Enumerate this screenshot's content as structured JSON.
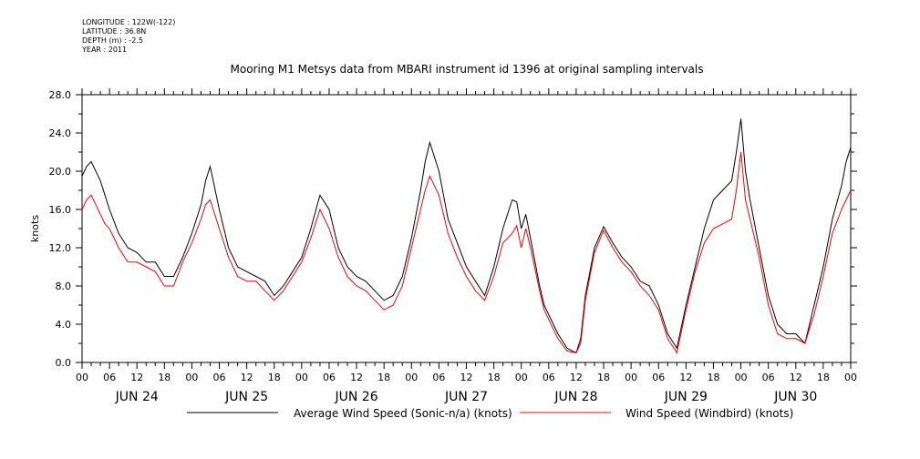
{
  "meta": {
    "longitude": "LONGITUDE : 122W(-122)",
    "latitude": "LATITUDE : 36.8N",
    "depth": "DEPTH (m) : -2.5",
    "year": "YEAR : 2011"
  },
  "chart_data": {
    "type": "line",
    "title": "Mooring M1 Metsys data from MBARI instrument id 1396 at original sampling intervals",
    "ylabel": "knots",
    "xlabel": "",
    "ylim": [
      0,
      28
    ],
    "yticks": [
      0,
      4,
      8,
      12,
      16,
      20,
      24,
      28
    ],
    "ytick_labels": [
      "0.0",
      "4.0",
      "8.0",
      "12.0",
      "16.0",
      "20.0",
      "24.0",
      "28.0"
    ],
    "xlim_hours": [
      0,
      168
    ],
    "hour_tick_labels": [
      "00",
      "06",
      "12",
      "18",
      "00",
      "06",
      "12",
      "18",
      "00",
      "06",
      "12",
      "18",
      "00",
      "06",
      "12",
      "18",
      "00",
      "06",
      "12",
      "18",
      "00",
      "06",
      "12",
      "18",
      "00",
      "06",
      "12",
      "18",
      "00"
    ],
    "day_labels": [
      "JUN 24",
      "JUN 25",
      "JUN 26",
      "JUN 27",
      "JUN 28",
      "JUN 29",
      "JUN 30"
    ],
    "x": [
      0,
      1,
      2,
      3,
      4,
      5,
      6,
      8,
      10,
      12,
      14,
      16,
      18,
      20,
      22,
      24,
      26,
      27,
      28,
      30,
      32,
      34,
      36,
      38,
      40,
      42,
      44,
      46,
      48,
      50,
      52,
      54,
      56,
      58,
      60,
      62,
      64,
      66,
      68,
      70,
      72,
      74,
      75,
      76,
      78,
      80,
      82,
      84,
      86,
      88,
      90,
      92,
      94,
      95,
      96,
      97,
      98,
      100,
      101,
      102,
      104,
      106,
      108,
      109,
      110,
      112,
      114,
      116,
      118,
      120,
      122,
      124,
      126,
      128,
      130,
      132,
      134,
      136,
      138,
      140,
      142,
      143,
      144,
      145,
      146,
      148,
      150,
      152,
      154,
      156,
      158,
      160,
      162,
      164,
      166,
      167,
      168
    ],
    "series": [
      {
        "name": "Average Wind Speed (Sonic-n/a) (knots)",
        "color": "#000000",
        "values": [
          19.5,
          20.5,
          21,
          20,
          19,
          17.5,
          16,
          13.5,
          12,
          11.5,
          10.5,
          10.5,
          9,
          9,
          11,
          13.5,
          16.5,
          19,
          20.5,
          16,
          12,
          10,
          9.5,
          9,
          8.5,
          7,
          8,
          9.5,
          11,
          14,
          17.5,
          16,
          12,
          10,
          9,
          8.5,
          7.5,
          6.5,
          7,
          9,
          13,
          18,
          21,
          23,
          20,
          15,
          12.5,
          10,
          8.5,
          7,
          10,
          14,
          17,
          16.8,
          14,
          15.5,
          13,
          8,
          6,
          5,
          3,
          1.5,
          1,
          2.5,
          7,
          12,
          14.2,
          12.5,
          11,
          10,
          8.5,
          8,
          6,
          3,
          1.5,
          6,
          10,
          14,
          17,
          18,
          19,
          22,
          25.5,
          20,
          17,
          12,
          7,
          4,
          3,
          3,
          2,
          6,
          10,
          15,
          18.5,
          21,
          22.5
        ]
      },
      {
        "name": "Wind Speed (Windbird) (knots)",
        "color": "#ff0000",
        "values": [
          16,
          17,
          17.5,
          16.5,
          15.5,
          14.5,
          14,
          12,
          10.5,
          10.5,
          10,
          9.5,
          8,
          8,
          10.5,
          12.5,
          15,
          16.5,
          17,
          14,
          11,
          9,
          8.5,
          8.5,
          7.5,
          6.5,
          7.5,
          9,
          10.5,
          13,
          16,
          14,
          11,
          9,
          8,
          7.5,
          6.5,
          5.5,
          6,
          8,
          12,
          16,
          18,
          19.5,
          17.5,
          13.5,
          11,
          9,
          7.5,
          6.5,
          9,
          12.5,
          13.5,
          14.3,
          12,
          14,
          12,
          7.5,
          5.5,
          4.5,
          2.5,
          1.2,
          1,
          2,
          6.5,
          11.5,
          13.8,
          12,
          10.5,
          9.5,
          8,
          7,
          5.5,
          2.5,
          1,
          5.5,
          9.5,
          12.5,
          14,
          14.5,
          15,
          18,
          22,
          17,
          15,
          11,
          6,
          3,
          2.5,
          2.5,
          2,
          5,
          9,
          13.5,
          16,
          17,
          18
        ]
      }
    ],
    "legend": [
      "Average Wind Speed (Sonic-n/a) (knots)",
      "Wind Speed (Windbird) (knots)"
    ],
    "legend_position": "bottom",
    "grid": false
  }
}
